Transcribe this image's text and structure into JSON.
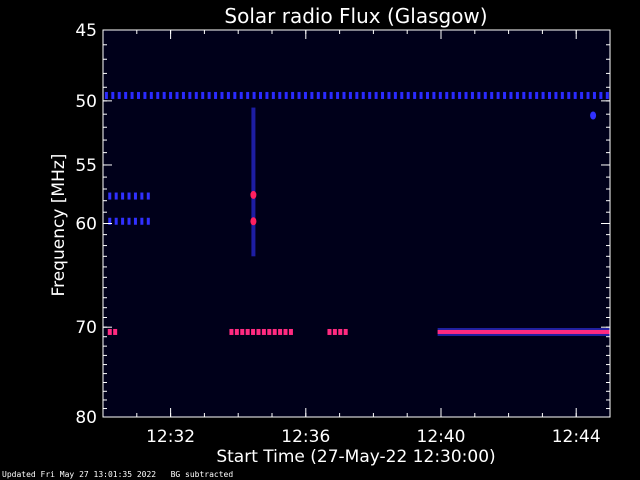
{
  "footer": {
    "updated": "Updated Fri May 27 13:01:35 2022",
    "note": "BG subtracted"
  },
  "chart_data": {
    "type": "heatmap",
    "title": "Solar radio Flux (Glasgow)",
    "xlabel": "Start Time (27-May-22 12:30:00)",
    "ylabel": "Frequency [MHz]",
    "xlim_minutes": [
      0,
      15.0
    ],
    "ylim_mhz": [
      45,
      80
    ],
    "y_scale": "log",
    "x_tick_labels": [
      {
        "label": "12:32",
        "minutes": 2
      },
      {
        "label": "12:36",
        "minutes": 6
      },
      {
        "label": "12:40",
        "minutes": 10
      },
      {
        "label": "12:44",
        "minutes": 14
      }
    ],
    "y_tick_labels": [
      {
        "label": "45",
        "mhz": 45
      },
      {
        "label": "50",
        "mhz": 50
      },
      {
        "label": "55",
        "mhz": 55
      },
      {
        "label": "60",
        "mhz": 60
      },
      {
        "label": "70",
        "mhz": 70
      },
      {
        "label": "80",
        "mhz": 80
      }
    ],
    "features": [
      {
        "name": "dotted band",
        "mhz": 49.6,
        "start_min": 0.1,
        "end_min": 15.0,
        "style": "dotted",
        "color": "#2a2aff"
      },
      {
        "name": "short band 57.6",
        "mhz": 57.6,
        "start_min": 0.2,
        "end_min": 1.4,
        "style": "dotted",
        "color": "#3030ff"
      },
      {
        "name": "short band 59.8",
        "mhz": 59.8,
        "start_min": 0.2,
        "end_min": 1.4,
        "style": "dotted",
        "color": "#3030ff"
      },
      {
        "name": "burst 70.5 early",
        "mhz": 70.5,
        "start_min": 0.2,
        "end_min": 0.4,
        "style": "dash",
        "color": "#ff2a80"
      },
      {
        "name": "burst 70.5 mid",
        "mhz": 70.5,
        "start_min": 3.8,
        "end_min": 5.6,
        "style": "dash",
        "color": "#ff2a80"
      },
      {
        "name": "burst 70.5 late",
        "mhz": 70.5,
        "start_min": 6.7,
        "end_min": 7.2,
        "style": "dash",
        "color": "#ff2a80"
      },
      {
        "name": "continuous 70.5",
        "mhz": 70.5,
        "start_min": 9.9,
        "end_min": 15.0,
        "style": "solid",
        "color": "#ff2a80"
      },
      {
        "name": "vertical burst",
        "start_min": 4.45,
        "mhz_range": [
          50.5,
          63.0
        ],
        "style": "vertical",
        "color": "#3030ff"
      },
      {
        "name": "hot spot 57.5",
        "mhz": 57.5,
        "minute": 4.45,
        "style": "spot",
        "color": "#ff2060"
      },
      {
        "name": "hot spot 59.8",
        "mhz": 59.8,
        "minute": 4.45,
        "style": "spot",
        "color": "#ff2060"
      },
      {
        "name": "spot 51",
        "mhz": 51.1,
        "minute": 14.5,
        "style": "spot",
        "color": "#3030ff"
      }
    ]
  }
}
